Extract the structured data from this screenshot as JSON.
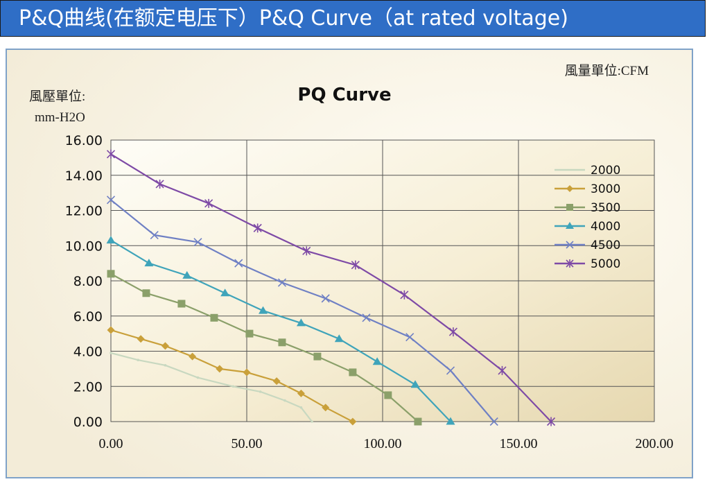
{
  "banner": {
    "title": "P&Q曲线(在额定电压下）P&Q Curve（at rated voltage)",
    "color": "#2f6ec6"
  },
  "chart_data": {
    "type": "line",
    "title": "PQ Curve",
    "unit_note": "風量單位:CFM",
    "ylabel_line1": "風壓單位:",
    "ylabel_line2": "mm-H2O",
    "xlim": [
      0,
      200
    ],
    "ylim": [
      0,
      16
    ],
    "x_ticks": [
      "0.00",
      "50.00",
      "100.00",
      "150.00",
      "200.00"
    ],
    "y_ticks": [
      "0.00",
      "2.00",
      "4.00",
      "6.00",
      "8.00",
      "10.00",
      "12.00",
      "14.00",
      "16.00"
    ],
    "grid": true,
    "legend_position": "top-right",
    "series": [
      {
        "name": "2000",
        "color": "#c8d8c0",
        "marker": "none",
        "marker_style": "dot",
        "x": [
          0,
          10,
          20,
          32,
          45,
          55,
          64,
          70,
          74
        ],
        "y": [
          3.9,
          3.5,
          3.2,
          2.5,
          2.0,
          1.7,
          1.2,
          0.8,
          0.0
        ]
      },
      {
        "name": "3000",
        "color": "#c9a03a",
        "marker": "diamond",
        "x": [
          0,
          11,
          20,
          30,
          40,
          50,
          61,
          70,
          79,
          89
        ],
        "y": [
          5.2,
          4.7,
          4.3,
          3.7,
          3.0,
          2.8,
          2.3,
          1.6,
          0.8,
          0.0
        ]
      },
      {
        "name": "3500",
        "color": "#8ba06a",
        "marker": "square",
        "x": [
          0,
          13,
          26,
          38,
          51,
          63,
          76,
          89,
          102,
          113
        ],
        "y": [
          8.4,
          7.3,
          6.7,
          5.9,
          5.0,
          4.5,
          3.7,
          2.8,
          1.5,
          0.0
        ]
      },
      {
        "name": "4000",
        "color": "#3fa4ba",
        "marker": "triangle",
        "x": [
          0,
          14,
          28,
          42,
          56,
          70,
          84,
          98,
          112,
          125
        ],
        "y": [
          10.3,
          9.0,
          8.3,
          7.3,
          6.3,
          5.6,
          4.7,
          3.4,
          2.1,
          0.0
        ]
      },
      {
        "name": "4500",
        "color": "#6f80c4",
        "marker": "x",
        "x": [
          0,
          16,
          32,
          47,
          63,
          79,
          94,
          110,
          125,
          141
        ],
        "y": [
          12.6,
          10.6,
          10.2,
          9.0,
          7.9,
          7.0,
          5.9,
          4.8,
          2.9,
          0.0
        ]
      },
      {
        "name": "5000",
        "color": "#7e4aa6",
        "marker": "star",
        "x": [
          0,
          18,
          36,
          54,
          72,
          90,
          108,
          126,
          144,
          162
        ],
        "y": [
          15.2,
          13.5,
          12.4,
          11.0,
          9.7,
          8.9,
          7.2,
          5.1,
          2.9,
          0.0
        ]
      }
    ]
  }
}
